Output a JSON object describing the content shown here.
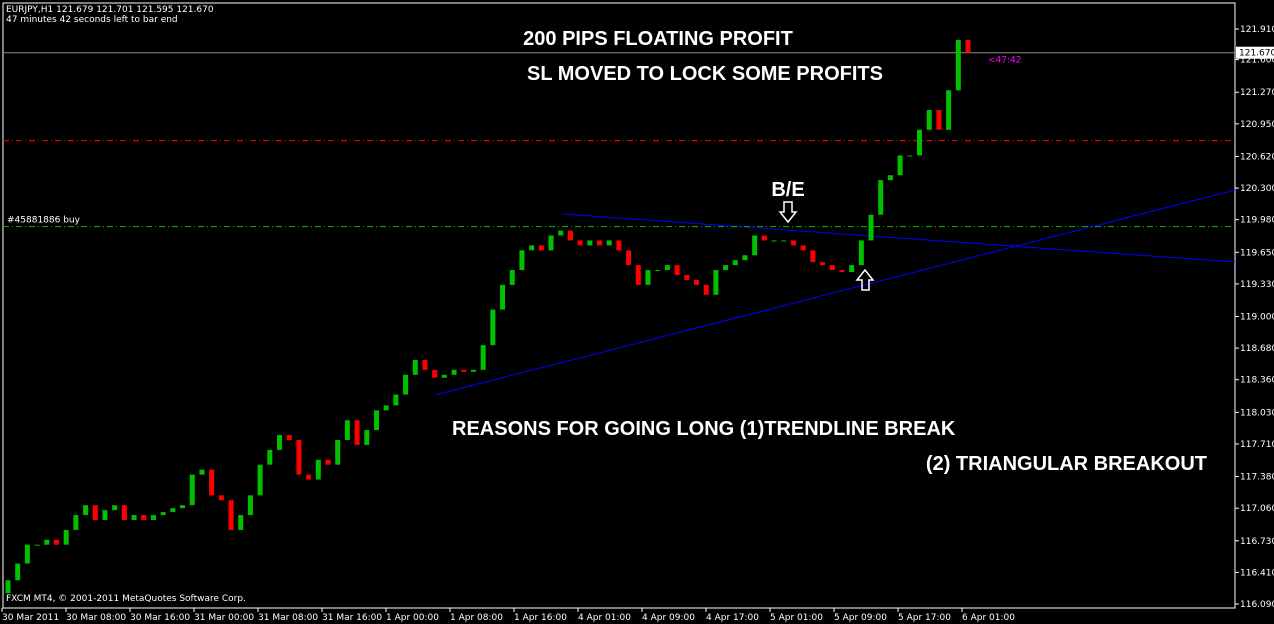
{
  "chart_data": {
    "type": "candlestick",
    "title": "EURJPY,H1  121.679 121.701 121.595 121.670",
    "subtitle": "47 minutes 42 seconds left to bar end",
    "copyright": "FXCM MT4, © 2001-2011 MetaQuotes Software Corp.",
    "annotations": [
      "200 PIPS FLOATING PROFIT",
      "SL MOVED TO LOCK SOME PROFITS",
      "REASONS FOR GOING LONG (1)TRENDLINE BREAK",
      "(2) TRIANGULAR BREAKOUT",
      "B/E"
    ],
    "order_label": "#45881886 buy",
    "timer_label": "<47:42",
    "up_color": "#00c000",
    "down_color": "#ff0000",
    "x_labels": [
      "30 Mar 2011",
      "30 Mar 08:00",
      "30 Mar 16:00",
      "31 Mar 00:00",
      "31 Mar 08:00",
      "31 Mar 16:00",
      "1 Apr 00:00",
      "1 Apr 08:00",
      "1 Apr 16:00",
      "4 Apr 01:00",
      "4 Apr 09:00",
      "4 Apr 17:00",
      "5 Apr 01:00",
      "5 Apr 09:00",
      "5 Apr 17:00",
      "6 Apr 01:00"
    ],
    "open": [
      116.2,
      116.33,
      116.5,
      116.69,
      116.69,
      116.74,
      116.69,
      116.84,
      116.99,
      117.09,
      116.94,
      117.04,
      117.09,
      116.94,
      116.99,
      116.94,
      116.99,
      117.02,
      117.06,
      117.09,
      117.4,
      117.45,
      117.19,
      117.14,
      116.84,
      116.99,
      117.19,
      117.5,
      117.65,
      117.8,
      117.75,
      117.4,
      117.35,
      117.55,
      117.5,
      117.75,
      117.95,
      117.7,
      117.85,
      118.05,
      118.1,
      118.21,
      118.41,
      118.56,
      118.46,
      118.38,
      118.41,
      118.46,
      118.44,
      118.46,
      118.71,
      119.07,
      119.32,
      119.47,
      119.67,
      119.72,
      119.67,
      119.82,
      119.87,
      119.77,
      119.72,
      119.77,
      119.72,
      119.77,
      119.67,
      119.52,
      119.32,
      119.47,
      119.47,
      119.52,
      119.42,
      119.37,
      119.32,
      119.22,
      119.47,
      119.52,
      119.57,
      119.62,
      119.82,
      119.77,
      119.77,
      119.77,
      119.72,
      119.67,
      119.55,
      119.52,
      119.47,
      119.45,
      119.52,
      119.77,
      120.03,
      120.38,
      120.43,
      120.63,
      120.63,
      120.89,
      121.09,
      120.89,
      121.29,
      121.8
    ],
    "close": [
      116.33,
      116.5,
      116.69,
      116.69,
      116.74,
      116.69,
      116.84,
      116.99,
      117.09,
      116.94,
      117.04,
      117.09,
      116.94,
      116.99,
      116.94,
      116.99,
      117.02,
      117.06,
      117.09,
      117.4,
      117.45,
      117.19,
      117.14,
      116.84,
      116.99,
      117.19,
      117.5,
      117.65,
      117.8,
      117.75,
      117.4,
      117.35,
      117.55,
      117.5,
      117.75,
      117.95,
      117.7,
      117.85,
      118.05,
      118.1,
      118.21,
      118.41,
      118.56,
      118.46,
      118.38,
      118.41,
      118.46,
      118.44,
      118.46,
      118.71,
      119.07,
      119.32,
      119.47,
      119.67,
      119.72,
      119.67,
      119.82,
      119.87,
      119.77,
      119.72,
      119.77,
      119.72,
      119.77,
      119.67,
      119.52,
      119.32,
      119.47,
      119.47,
      119.52,
      119.42,
      119.37,
      119.32,
      119.22,
      119.47,
      119.52,
      119.57,
      119.62,
      119.82,
      119.77,
      119.77,
      119.77,
      119.72,
      119.67,
      119.55,
      119.52,
      119.47,
      119.45,
      119.52,
      119.77,
      120.03,
      120.38,
      120.43,
      120.63,
      120.63,
      120.89,
      121.09,
      120.89,
      121.29,
      121.8,
      121.67
    ],
    "current_price": {
      "value": 121.67,
      "label": "121.670"
    },
    "entry_level": 119.91,
    "stop_level": 120.78,
    "ylim": [
      116.09,
      121.91
    ],
    "yticks": [
      {
        "value": 121.91,
        "label": "121.910"
      },
      {
        "value": 121.6,
        "label": "121.600"
      },
      {
        "value": 121.27,
        "label": "121.270"
      },
      {
        "value": 120.95,
        "label": "120.950"
      },
      {
        "value": 120.62,
        "label": "120.620"
      },
      {
        "value": 120.3,
        "label": "120.300"
      },
      {
        "value": 119.98,
        "label": "119.980"
      },
      {
        "value": 119.65,
        "label": "119.650"
      },
      {
        "value": 119.33,
        "label": "119.330"
      },
      {
        "value": 119,
        "label": "119.000"
      },
      {
        "value": 118.68,
        "label": "118.680"
      },
      {
        "value": 118.36,
        "label": "118.360"
      },
      {
        "value": 118.03,
        "label": "118.030"
      },
      {
        "value": 117.71,
        "label": "117.710"
      },
      {
        "value": 117.38,
        "label": "117.380"
      },
      {
        "value": 117.06,
        "label": "117.060"
      },
      {
        "value": 116.73,
        "label": "116.730"
      },
      {
        "value": 116.41,
        "label": "116.410"
      },
      {
        "value": 116.09,
        "label": "116.090"
      }
    ]
  }
}
